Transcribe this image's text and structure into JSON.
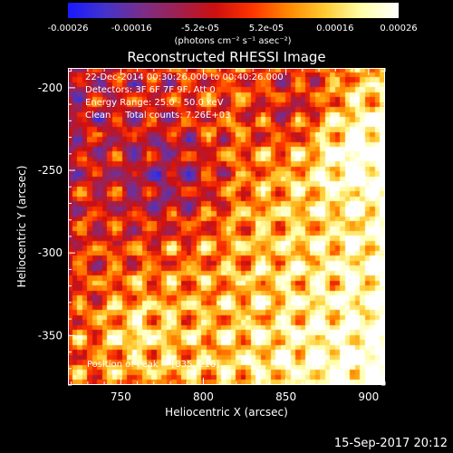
{
  "colors": {
    "background": "#000000",
    "foreground": "#ffffff",
    "colorbar_stops": [
      "#1a1aff",
      "#4433cc",
      "#7a2e8a",
      "#a02050",
      "#cc1010",
      "#ff3300",
      "#ff8800",
      "#ffcc33",
      "#ffffaa",
      "#ffffff"
    ]
  },
  "chart_data": {
    "type": "heatmap",
    "title": "Reconstructed RHESSI Image",
    "xlabel": "Heliocentric X (arcsec)",
    "ylabel": "Heliocentric Y (arcsec)",
    "xlim": [
      718,
      910
    ],
    "ylim": [
      -380,
      -188
    ],
    "xticks": [
      750,
      800,
      850,
      900
    ],
    "yticks": [
      -200,
      -250,
      -300,
      -350
    ],
    "colorbar": {
      "range": [
        -0.00026,
        0.00026
      ],
      "tick_labels": [
        "-0.00026",
        "-0.00016",
        "-5.2e-05",
        "5.2e-05",
        "0.00016",
        "0.00026"
      ],
      "units_label": "(photons cm⁻² s⁻¹ asec⁻²)"
    },
    "annotations": [
      "22-Dec-2014 00:30:26.000 to 00:40:26.000",
      "Detectors: 3F 6F 7F 9F, Att 0",
      "Energy Range: 25.0 - 50.0 keV",
      "Clean     Total counts: 7.26E+03"
    ],
    "peak_label": "Position of Peak = [835,-216]"
  },
  "footer_timestamp": "15-Sep-2017 20:12"
}
